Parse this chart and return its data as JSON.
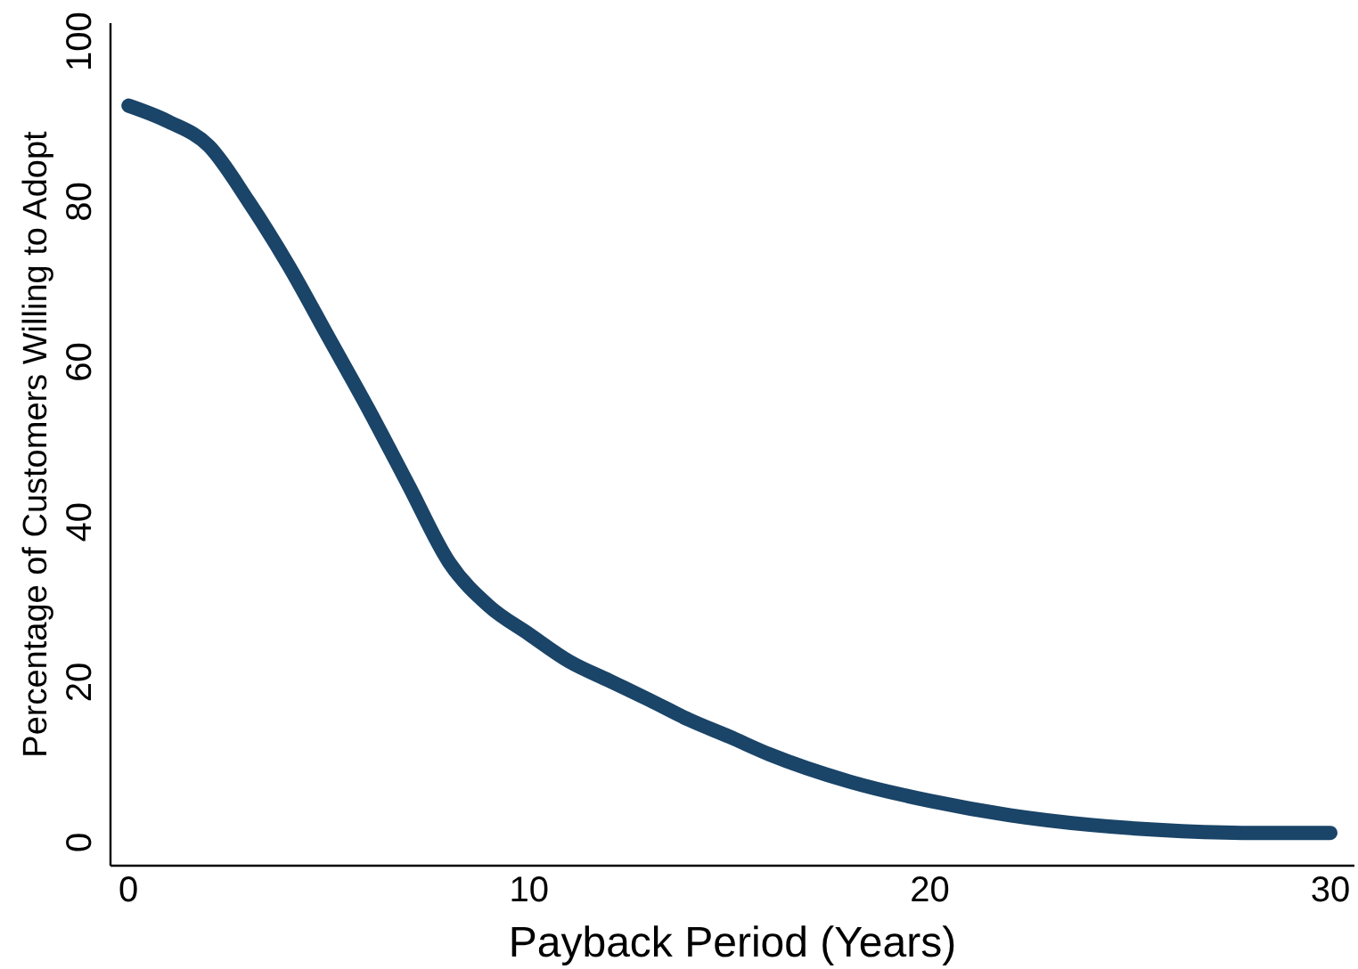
{
  "chart_data": {
    "type": "line",
    "xlabel": "Payback Period (Years)",
    "ylabel": "Percentage of Customers Willing to Adopt",
    "x": [
      0,
      1,
      2,
      3,
      4,
      5,
      6,
      7,
      8,
      9,
      10,
      11,
      12,
      13,
      14,
      15,
      16,
      18,
      20,
      22,
      24,
      26,
      28,
      30
    ],
    "series": [
      {
        "color": "#1a4468",
        "values": [
          92,
          90,
          87,
          80,
          72,
          63,
          54,
          44.5,
          35,
          29.5,
          26,
          22.6,
          20.2,
          17.8,
          15.3,
          13.2,
          11,
          7.6,
          5.2,
          3.4,
          2.2,
          1.5,
          1.2,
          1.2
        ]
      }
    ],
    "xlim": [
      -0.45,
      30.6
    ],
    "ylim": [
      -2.9,
      102.3
    ],
    "xticks": [
      0,
      10,
      20,
      30
    ],
    "yticks": [
      0,
      20,
      40,
      60,
      80,
      100
    ],
    "marker": "none",
    "line_style": "solid"
  }
}
